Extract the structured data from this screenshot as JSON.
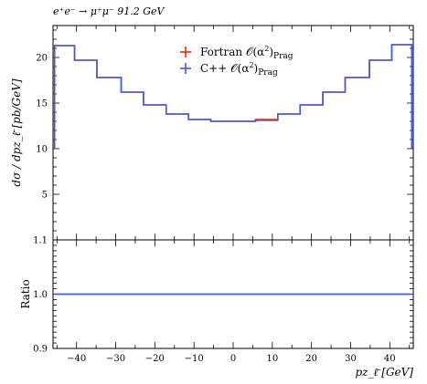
{
  "chart_data": {
    "type": "line",
    "title": "e⁺e⁻ → μ⁺μ⁻ 91.2 GeV",
    "xlabel": "pz_ℓ̄ [GeV]",
    "ylabel": "dσ / dpz_ℓ̄ [pb/GeV]",
    "ratio_ylabel": "Ratio",
    "xlim": [
      -46,
      46
    ],
    "ylim": [
      0,
      23.5
    ],
    "ratio_ylim": [
      0.9,
      1.1
    ],
    "x_ticks": [
      -40,
      -30,
      -20,
      -10,
      0,
      10,
      20,
      30,
      40
    ],
    "x_tick_labels": [
      "−40",
      "−30",
      "−20",
      "−10",
      "0",
      "10",
      "20",
      "30",
      "40"
    ],
    "y_ticks": [
      5,
      10,
      15,
      20
    ],
    "y_tick_labels": [
      "5",
      "10",
      "15",
      "20"
    ],
    "ratio_y_ticks": [
      0.9,
      1.0,
      1.1
    ],
    "ratio_y_tick_labels": [
      "0.9",
      "1.0",
      "1.1"
    ],
    "legend_placement": "top-center",
    "bin_edges": [
      -45.6,
      -40.5,
      -34.8,
      -28.6,
      -22.9,
      -17.1,
      -11.4,
      -5.7,
      0,
      5.7,
      11.4,
      17.1,
      22.9,
      28.6,
      34.8,
      40.5,
      45.6
    ],
    "series": [
      {
        "name": "Fortran 𝒪(α²)Prag",
        "name_main": "Fortran 𝒪(α",
        "name_sup": "2",
        "name_close": ")",
        "name_sub": "Prag",
        "color": "#ff2200",
        "values": [
          21.3,
          19.7,
          17.8,
          16.2,
          14.8,
          13.8,
          13.2,
          13.0,
          13.0,
          13.2,
          13.8,
          14.8,
          16.2,
          17.8,
          19.7,
          21.4
        ],
        "ratio": [
          1.0,
          1.0,
          1.0,
          1.0,
          1.0,
          1.0,
          1.0,
          1.0,
          1.0,
          1.0,
          1.0,
          1.0,
          1.0,
          1.0,
          1.0,
          1.0
        ]
      },
      {
        "name": "C++ 𝒪(α²)Prag",
        "name_main": "C++ 𝒪(α",
        "name_sup": "2",
        "name_close": ")",
        "name_sub": "Prag",
        "color": "#3a5fe8",
        "values": [
          21.3,
          19.7,
          17.8,
          16.2,
          14.8,
          13.8,
          13.2,
          13.0,
          13.0,
          13.1,
          13.8,
          14.8,
          16.2,
          17.8,
          19.7,
          21.4
        ],
        "ratio": [
          1.0,
          1.0,
          1.0,
          1.0,
          1.0,
          1.0,
          1.0,
          1.0,
          1.0,
          1.0,
          1.0,
          1.0,
          1.0,
          1.0,
          1.0,
          1.0
        ]
      }
    ]
  }
}
